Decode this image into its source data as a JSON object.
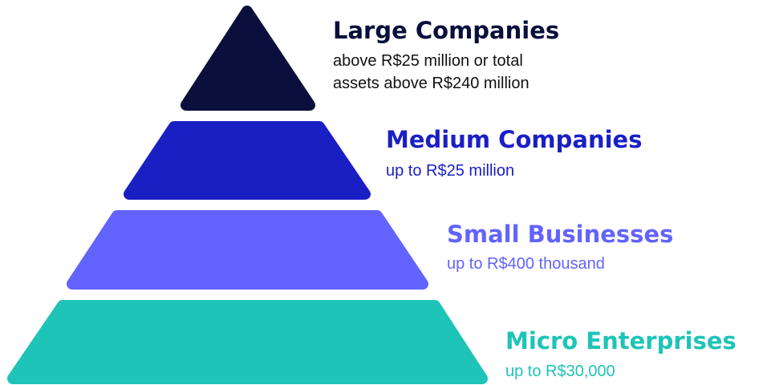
{
  "levels": [
    {
      "title": "Large Companies",
      "description": [
        "above R$25 million or total",
        "assets above R$240 million"
      ]
    },
    {
      "title": "Medium Companies",
      "description": [
        "up to R$25 million"
      ]
    },
    {
      "title": "Small Businesses",
      "description": [
        "up to R$400 thousand"
      ]
    },
    {
      "title": "Micro Enterprises",
      "description": [
        "up to R$30,000"
      ]
    }
  ]
}
